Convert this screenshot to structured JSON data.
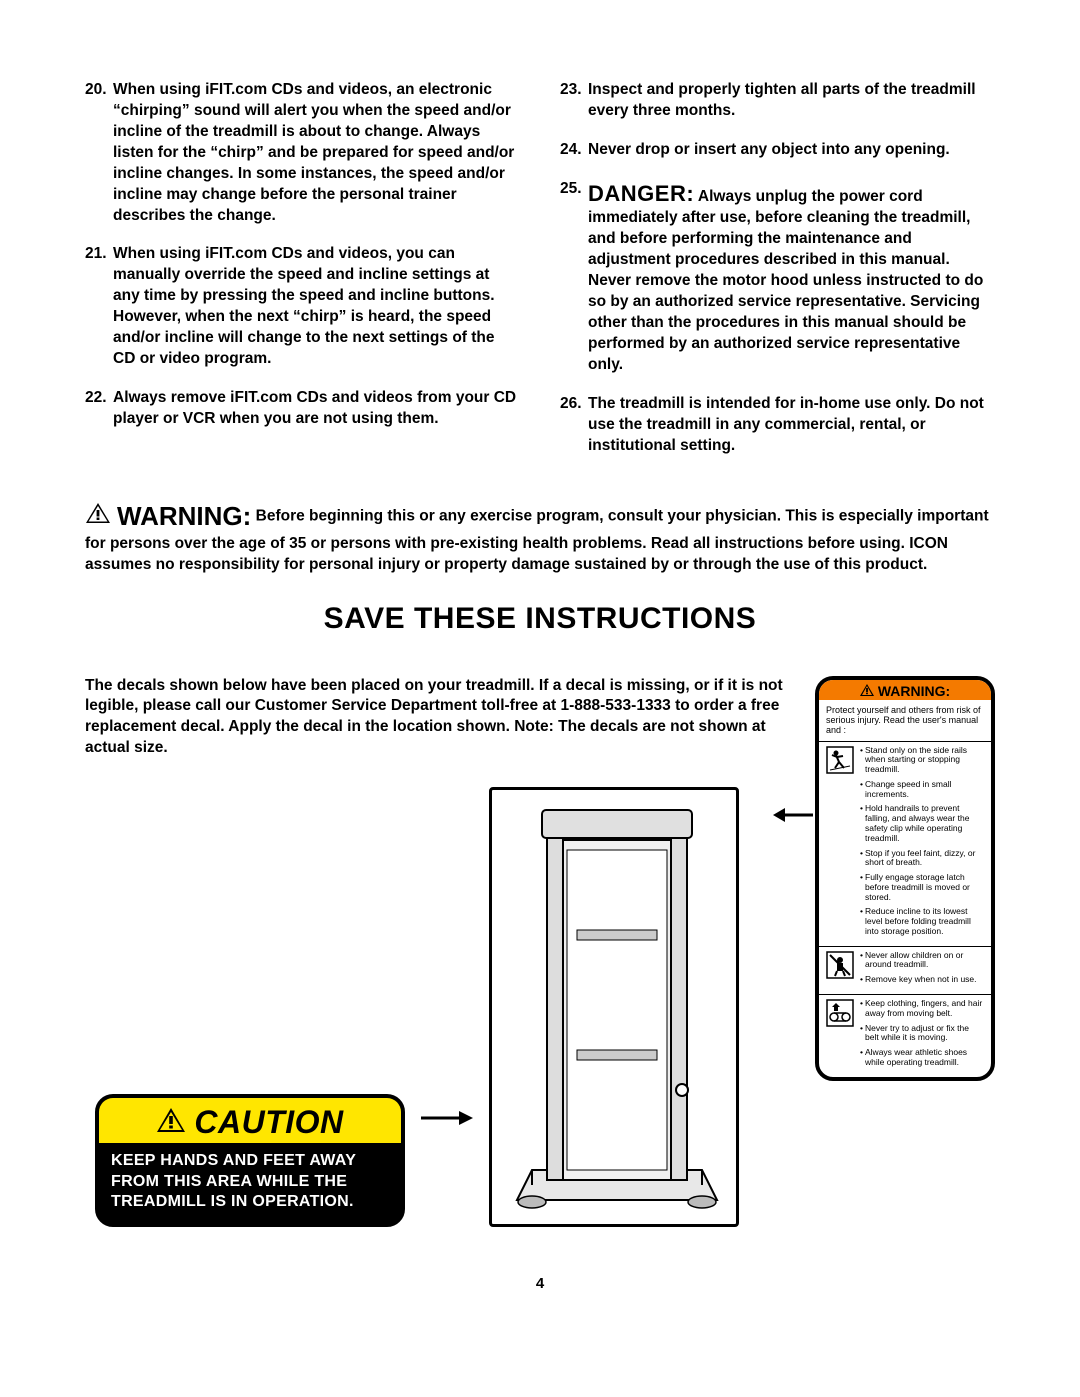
{
  "instructions_left": [
    {
      "n": "20.",
      "t": "When using iFIT.com CDs and videos, an electronic “chirping” sound will alert you when the speed and/or incline of the treadmill is about to change. Always listen for the “chirp” and be prepared for speed and/or incline changes. In some instances, the speed and/or incline may change before the personal trainer describes the change."
    },
    {
      "n": "21.",
      "t": "When using iFIT.com CDs and videos, you can manually override the speed and incline settings at any time by pressing the speed and incline buttons. However, when the next “chirp” is heard, the speed and/or incline will change to the next settings of the CD or video program."
    },
    {
      "n": "22.",
      "t": "Always remove iFIT.com CDs and videos from your CD player or VCR when you are not using them."
    }
  ],
  "instructions_right": [
    {
      "n": "23.",
      "t": "Inspect and properly tighten all parts of the treadmill every three months."
    },
    {
      "n": "24.",
      "t": "Never drop or insert any object into any opening."
    },
    {
      "n": "25.",
      "danger": "DANGER:",
      "t": " Always unplug the power cord immediately after use, before cleaning the treadmill, and before performing the maintenance and adjustment procedures described in this manual. Never remove the motor hood unless instructed to do so by an authorized service representative. Servicing other than the procedures in this manual should be performed by an authorized service representative only."
    },
    {
      "n": "26.",
      "t": "The treadmill is intended for in-home use only. Do not use the treadmill in any commercial, rental, or institutional setting."
    }
  ],
  "warning_word": "WARNING:",
  "warning_para": " Before beginning this or any exercise program, consult your physician. This is especially important for persons over the age of 35 or persons with pre-existing health problems. Read all instructions before using. ICON assumes no responsibility for personal injury or property damage sustained by or through the use of this product.",
  "save_heading": "SAVE THESE INSTRUCTIONS",
  "decal_text": "The decals shown below have been placed on your treadmill. If a decal is missing, or if it is not legible, please call our Customer Service Department toll-free at 1-888-533-1333 to order a free replacement decal. Apply the decal in the location shown. Note: The decals are not shown at actual size.",
  "caution_word": "CAUTION",
  "caution_body": "KEEP HANDS AND FEET AWAY FROM THIS AREA WHILE THE TREADMILL IS IN OPERATION.",
  "wd": {
    "header": "WARNING:",
    "intro": "Protect yourself and others from risk of serious injury.  Read the user's manual and :",
    "sec1": [
      "Stand only on the side rails when starting or stopping treadmill.",
      "Change speed in small increments.",
      "Hold handrails to prevent falling, and always wear the safety clip while operating treadmill.",
      "Stop if you feel faint, dizzy, or short of breath.",
      "Fully engage storage latch  before treadmill  is moved or stored.",
      "Reduce incline to its lowest level before folding treadmill into storage position."
    ],
    "sec2": [
      "Never allow children on or around treadmill.",
      "Remove key when not in use."
    ],
    "sec3": [
      "Keep clothing, fingers, and hair away from moving belt.",
      "Never try to adjust or fix the belt while it is moving.",
      "Always wear athletic shoes while operating treadmill."
    ]
  },
  "page": "4",
  "colors": {
    "caution_yellow": "#ffe600",
    "warning_orange": "#f47a00"
  }
}
